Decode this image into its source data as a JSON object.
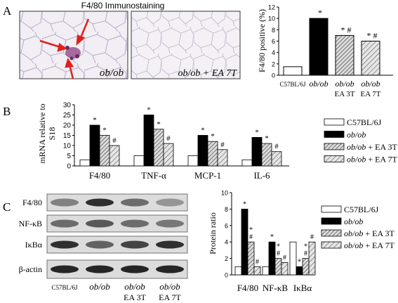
{
  "panels": {
    "A": {
      "letter": "A",
      "stain_title": "F4/80 Immunostaining",
      "image_left_label": "ob/ob",
      "image_right_label": "ob/ob + EA 7T"
    },
    "B": {
      "letter": "B"
    },
    "C": {
      "letter": "C",
      "blot_rows": [
        "F4/80",
        "NF-κB",
        "IκBα",
        "β-actin"
      ],
      "blot_lanes": [
        {
          "line1": "C57BL/6J",
          "line2": ""
        },
        {
          "line1": "ob/ob",
          "line2": ""
        },
        {
          "line1": "ob/ob",
          "line2": "EA 3T"
        },
        {
          "line1": "ob/ob",
          "line2": "EA 7T"
        }
      ]
    }
  },
  "legend": {
    "entries": [
      "C57BL/6J",
      "ob/ob",
      "ob/ob + EA 3T",
      "ob/ob + EA 7T"
    ]
  },
  "colors": {
    "control": "#ffffff",
    "obob": "#000000",
    "hatch_fill": "#d9d9d9",
    "hatch_line": "#444444"
  },
  "chart_data": [
    {
      "type": "bar",
      "panel": "A",
      "title": "",
      "ylabel": "F4/80 positive (%)",
      "ylim": [
        0,
        12
      ],
      "yticks": [
        0,
        2,
        4,
        6,
        8,
        10,
        12
      ],
      "categories": [
        "C57BL/6J",
        "ob/ob",
        "ob/ob EA 3T",
        "ob/ob EA 7T"
      ],
      "tick_labels": [
        {
          "line1": "C57BL/6J",
          "line2": ""
        },
        {
          "line1": "ob/ob",
          "line2": ""
        },
        {
          "line1": "ob/ob",
          "line2": "EA 3T"
        },
        {
          "line1": "ob/ob",
          "line2": "EA 7T"
        }
      ],
      "values": [
        1.5,
        10,
        7,
        6
      ],
      "markers": [
        "",
        "*",
        "* #",
        "* #"
      ]
    },
    {
      "type": "bar",
      "panel": "B",
      "ylabel": "mRNA relative to S18",
      "ylim": [
        0,
        30
      ],
      "yticks": [
        0,
        5,
        10,
        15,
        20,
        25,
        30
      ],
      "categories": [
        "F4/80",
        "TNF-α",
        "MCP-1",
        "IL-6"
      ],
      "series": [
        {
          "name": "C57BL/6J",
          "values": [
            3,
            5,
            5,
            3
          ],
          "markers": [
            "",
            "",
            "",
            ""
          ]
        },
        {
          "name": "ob/ob",
          "values": [
            20,
            25,
            15,
            14
          ],
          "markers": [
            "*",
            "*",
            "*",
            "*"
          ]
        },
        {
          "name": "ob/ob + EA 3T",
          "values": [
            15,
            18,
            12,
            11
          ],
          "markers": [
            "*",
            "*",
            "*",
            "*"
          ]
        },
        {
          "name": "ob/ob + EA 7T",
          "values": [
            10,
            11,
            8,
            7
          ],
          "markers": [
            "#",
            "#",
            "#",
            "#"
          ]
        }
      ]
    },
    {
      "type": "bar",
      "panel": "C",
      "ylabel": "Protein ratio",
      "ylim": [
        0,
        10
      ],
      "yticks": [
        0,
        2,
        4,
        6,
        8,
        10
      ],
      "categories": [
        "F4/80",
        "NF-κB",
        "IκBα"
      ],
      "series": [
        {
          "name": "C57BL/6J",
          "values": [
            1,
            1,
            4
          ],
          "markers": [
            "",
            "",
            ""
          ]
        },
        {
          "name": "ob/ob",
          "values": [
            8,
            4,
            1
          ],
          "markers": [
            "*",
            "*",
            "*"
          ]
        },
        {
          "name": "ob/ob + EA 3T",
          "values": [
            4,
            2,
            2
          ],
          "markers": [
            "* #",
            "* #",
            "* #"
          ]
        },
        {
          "name": "ob/ob + EA 7T",
          "values": [
            1,
            1.5,
            4
          ],
          "markers": [
            "#",
            "#",
            "#"
          ]
        }
      ]
    }
  ]
}
